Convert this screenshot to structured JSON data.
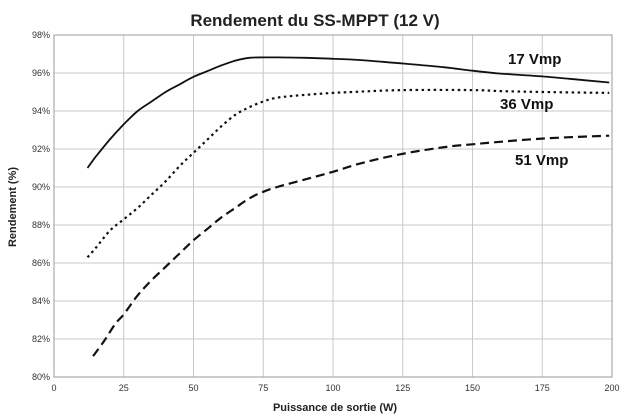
{
  "chart_data": {
    "type": "line",
    "title": "Rendement du SS-MPPT (12 V)",
    "xlabel": "Puissance de sortie (W)",
    "ylabel": "Rendement (%)",
    "xlim": [
      0,
      200
    ],
    "ylim": [
      80,
      98
    ],
    "x_ticks": [
      "0",
      "25",
      "50",
      "75",
      "100",
      "125",
      "150",
      "175",
      "200"
    ],
    "y_ticks": [
      "80%",
      "82%",
      "84%",
      "86%",
      "88%",
      "90%",
      "92%",
      "94%",
      "96%",
      "98%"
    ],
    "grid": true,
    "series": [
      {
        "name": "17 Vmp",
        "style": "solid",
        "x": [
          12,
          15,
          20,
          25,
          30,
          35,
          40,
          45,
          50,
          55,
          60,
          65,
          70,
          75,
          80,
          90,
          100,
          110,
          125,
          140,
          150,
          160,
          175,
          190,
          199
        ],
        "values": [
          91.0,
          91.6,
          92.5,
          93.3,
          94.0,
          94.5,
          95.0,
          95.4,
          95.8,
          96.1,
          96.4,
          96.65,
          96.8,
          96.82,
          96.82,
          96.8,
          96.75,
          96.68,
          96.5,
          96.3,
          96.12,
          95.97,
          95.82,
          95.62,
          95.5
        ]
      },
      {
        "name": "36 Vmp",
        "style": "dotted",
        "x": [
          12,
          15,
          20,
          25,
          30,
          35,
          40,
          45,
          50,
          55,
          60,
          65,
          70,
          75,
          80,
          90,
          100,
          110,
          125,
          150,
          160,
          175,
          199
        ],
        "values": [
          86.3,
          86.8,
          87.7,
          88.3,
          88.9,
          89.6,
          90.3,
          91.1,
          91.8,
          92.5,
          93.2,
          93.8,
          94.2,
          94.5,
          94.7,
          94.85,
          94.95,
          95.02,
          95.1,
          95.1,
          95.05,
          95.0,
          94.95
        ]
      },
      {
        "name": "51 Vmp",
        "style": "dashed",
        "x": [
          14,
          18,
          22,
          25,
          30,
          35,
          40,
          45,
          50,
          55,
          60,
          65,
          70,
          75,
          80,
          90,
          100,
          110,
          125,
          140,
          150,
          160,
          175,
          190,
          199
        ],
        "values": [
          81.1,
          81.9,
          82.8,
          83.3,
          84.3,
          85.1,
          85.8,
          86.5,
          87.2,
          87.8,
          88.4,
          88.9,
          89.4,
          89.75,
          90.0,
          90.4,
          90.8,
          91.25,
          91.75,
          92.1,
          92.25,
          92.38,
          92.55,
          92.65,
          92.7
        ]
      }
    ]
  }
}
